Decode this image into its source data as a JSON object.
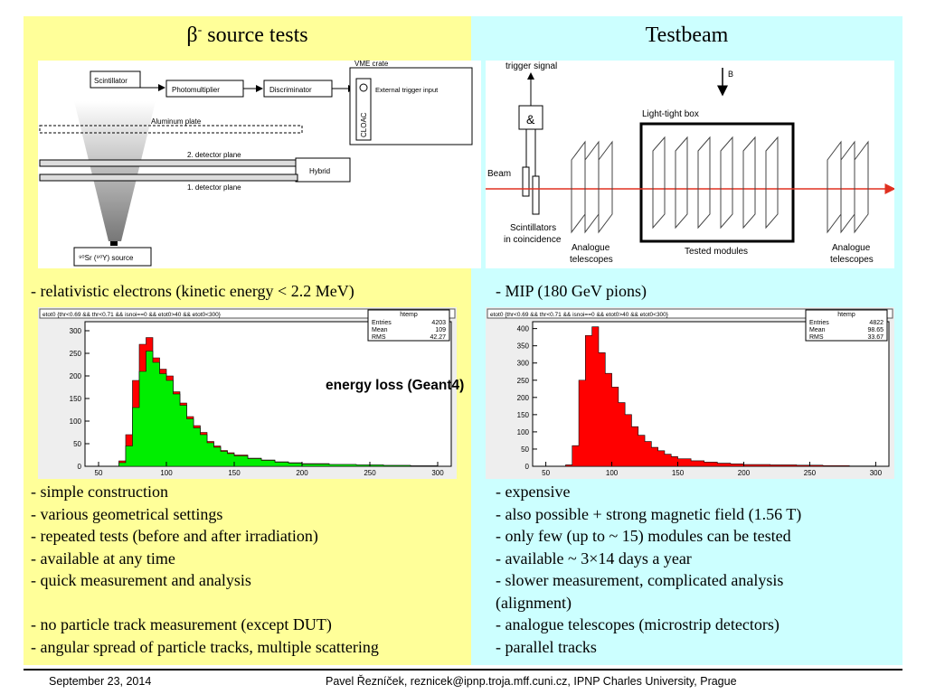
{
  "left": {
    "title_symbol": "β",
    "title_sup": "-",
    "title_rest": " source tests",
    "diagram": {
      "scintillator": "Scintillator",
      "photomultiplier": "Photomultiplier",
      "discriminator": "Discriminator",
      "vme_crate": "VME crate",
      "external_trigger": "External trigger input",
      "cloac": "CLOAC",
      "aluminum_plate": "Aluminum plate",
      "plane2": "2. detector plane",
      "hybrid": "Hybrid",
      "plane1": "1. detector plane",
      "source": "⁹⁰Sr (⁹⁰Y) source"
    },
    "caption": "- relativistic electrons (kinetic energy < 2.2 MeV)",
    "pros": [
      "- simple construction",
      "- various geometrical settings",
      "- repeated tests (before and after irradiation)",
      "- available at any time",
      "- quick measurement and analysis"
    ],
    "cons": [
      "- no particle track measurement (except DUT)",
      "- angular spread of particle tracks, multiple scattering"
    ]
  },
  "right": {
    "title": "Testbeam",
    "diagram": {
      "trigger_signal": "trigger signal",
      "and_gate": "&",
      "b_field": "B",
      "light_tight_box": "Light-tight box",
      "beam": "Beam",
      "scintillators_line1": "Scintillators",
      "scintillators_line2": "in coincidence",
      "analogue1_line1": "Analogue",
      "analogue1_line2": "telescopes",
      "tested_modules": "Tested modules",
      "analogue2_line1": "Analogue",
      "analogue2_line2": "telescopes"
    },
    "caption": "- MIP (180 GeV pions)",
    "pros": [
      "- expensive",
      "- also possible + strong magnetic field (1.56 T)",
      "- only few (up to ~ 15) modules can be tested",
      "- available ~ 3×14 days a year",
      "- slower measurement, complicated analysis",
      "(alignment)",
      "- analogue telescopes (microstrip detectors)",
      "- parallel tracks"
    ]
  },
  "center_label": "energy loss (Geant4)",
  "footer": {
    "date": "September 23, 2014",
    "author": "Pavel Řezníček, reznicek@ipnp.troja.mff.cuni.cz, IPNP Charles University, Prague"
  },
  "chart_data": [
    {
      "type": "bar",
      "title": "etot0 {thr<0.69 && thr<0.71 && isnoi==0 && etot0>40 && etot0<300}",
      "stats": {
        "name": "htemp",
        "entries_label": "Entries",
        "entries": "4203",
        "mean_label": "Mean",
        "mean": "109",
        "rms_label": "RMS",
        "rms": "42.27"
      },
      "xlim": [
        40,
        310
      ],
      "ylim": [
        0,
        320
      ],
      "xticks": [
        50,
        100,
        150,
        200,
        250,
        300
      ],
      "yticks": [
        0,
        50,
        100,
        150,
        200,
        250,
        300
      ],
      "colors": {
        "red": "#ff0000",
        "green": "#00ee00"
      },
      "series": [
        {
          "name": "red",
          "x": [
            60,
            65,
            70,
            75,
            80,
            85,
            90,
            95,
            100,
            105,
            110,
            115,
            120,
            125,
            130,
            135,
            140,
            145,
            150,
            160,
            170,
            180,
            190,
            200,
            220,
            240,
            260,
            280,
            300
          ],
          "values": [
            0,
            12,
            70,
            190,
            270,
            285,
            240,
            215,
            200,
            165,
            140,
            110,
            90,
            75,
            55,
            45,
            35,
            30,
            25,
            18,
            14,
            10,
            8,
            6,
            4,
            3,
            2,
            1,
            0
          ]
        },
        {
          "name": "green",
          "x": [
            60,
            65,
            70,
            75,
            80,
            85,
            90,
            95,
            100,
            105,
            110,
            115,
            120,
            125,
            130,
            135,
            140,
            145,
            150,
            160,
            170,
            180,
            190,
            200,
            220,
            240,
            260,
            280,
            300
          ],
          "values": [
            0,
            8,
            45,
            130,
            210,
            255,
            230,
            205,
            190,
            160,
            135,
            105,
            85,
            70,
            52,
            42,
            33,
            28,
            23,
            17,
            13,
            9,
            7,
            5,
            4,
            3,
            2,
            1,
            0
          ]
        }
      ]
    },
    {
      "type": "bar",
      "title": "etot0 {thr<0.69 && thr<0.71 && isnoi==0 && etot0>40 && etot0<300}",
      "stats": {
        "name": "htemp",
        "entries_label": "Entries",
        "entries": "4822",
        "mean_label": "Mean",
        "mean": "98.65",
        "rms_label": "RMS",
        "rms": "33.67"
      },
      "xlim": [
        40,
        310
      ],
      "ylim": [
        0,
        420
      ],
      "xticks": [
        50,
        100,
        150,
        200,
        250,
        300
      ],
      "yticks": [
        0,
        50,
        100,
        150,
        200,
        250,
        300,
        350,
        400
      ],
      "colors": {
        "red": "#ff0000"
      },
      "series": [
        {
          "name": "red",
          "x": [
            60,
            65,
            70,
            75,
            80,
            85,
            90,
            95,
            100,
            105,
            110,
            115,
            120,
            125,
            130,
            135,
            140,
            145,
            150,
            160,
            170,
            180,
            190,
            200,
            220,
            240,
            260,
            280,
            300
          ],
          "values": [
            0,
            4,
            60,
            250,
            380,
            405,
            330,
            270,
            230,
            185,
            150,
            115,
            90,
            72,
            55,
            45,
            35,
            28,
            22,
            16,
            12,
            9,
            7,
            5,
            4,
            3,
            2,
            1,
            0
          ]
        }
      ]
    }
  ]
}
